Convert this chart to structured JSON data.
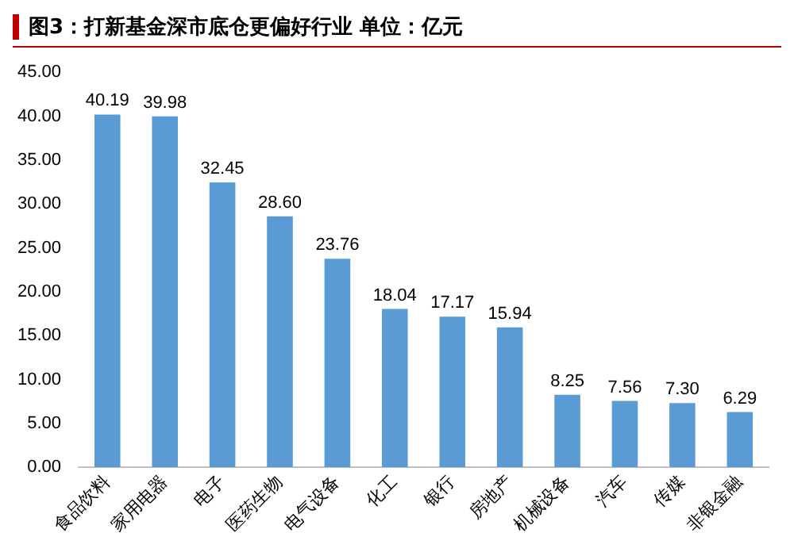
{
  "chart_data": {
    "type": "bar",
    "title": "图3：打新基金深市底仓更偏好行业 单位：亿元",
    "categories": [
      "食品饮料",
      "家用电器",
      "电子",
      "医药生物",
      "电气设备",
      "化工",
      "银行",
      "房地产",
      "机械设备",
      "汽车",
      "传媒",
      "非银金融"
    ],
    "values": [
      40.19,
      39.98,
      32.45,
      28.6,
      23.76,
      18.04,
      17.17,
      15.94,
      8.25,
      7.56,
      7.3,
      6.29
    ],
    "value_labels": [
      "40.19",
      "39.98",
      "32.45",
      "28.60",
      "23.76",
      "18.04",
      "17.17",
      "15.94",
      "8.25",
      "7.56",
      "7.30",
      "6.29"
    ],
    "color": "#5b9bd5",
    "ylim": [
      0,
      45
    ],
    "yticks": [
      {
        "value": 0,
        "label": "0.00"
      },
      {
        "value": 5,
        "label": "5.00"
      },
      {
        "value": 10,
        "label": "10.00"
      },
      {
        "value": 15,
        "label": "15.00"
      },
      {
        "value": 20,
        "label": "20.00"
      },
      {
        "value": 25,
        "label": "25.00"
      },
      {
        "value": 30,
        "label": "30.00"
      },
      {
        "value": 35,
        "label": "35.00"
      },
      {
        "value": 40,
        "label": "40.00"
      },
      {
        "value": 45,
        "label": "45.00"
      }
    ],
    "grid": false,
    "legend": false
  }
}
